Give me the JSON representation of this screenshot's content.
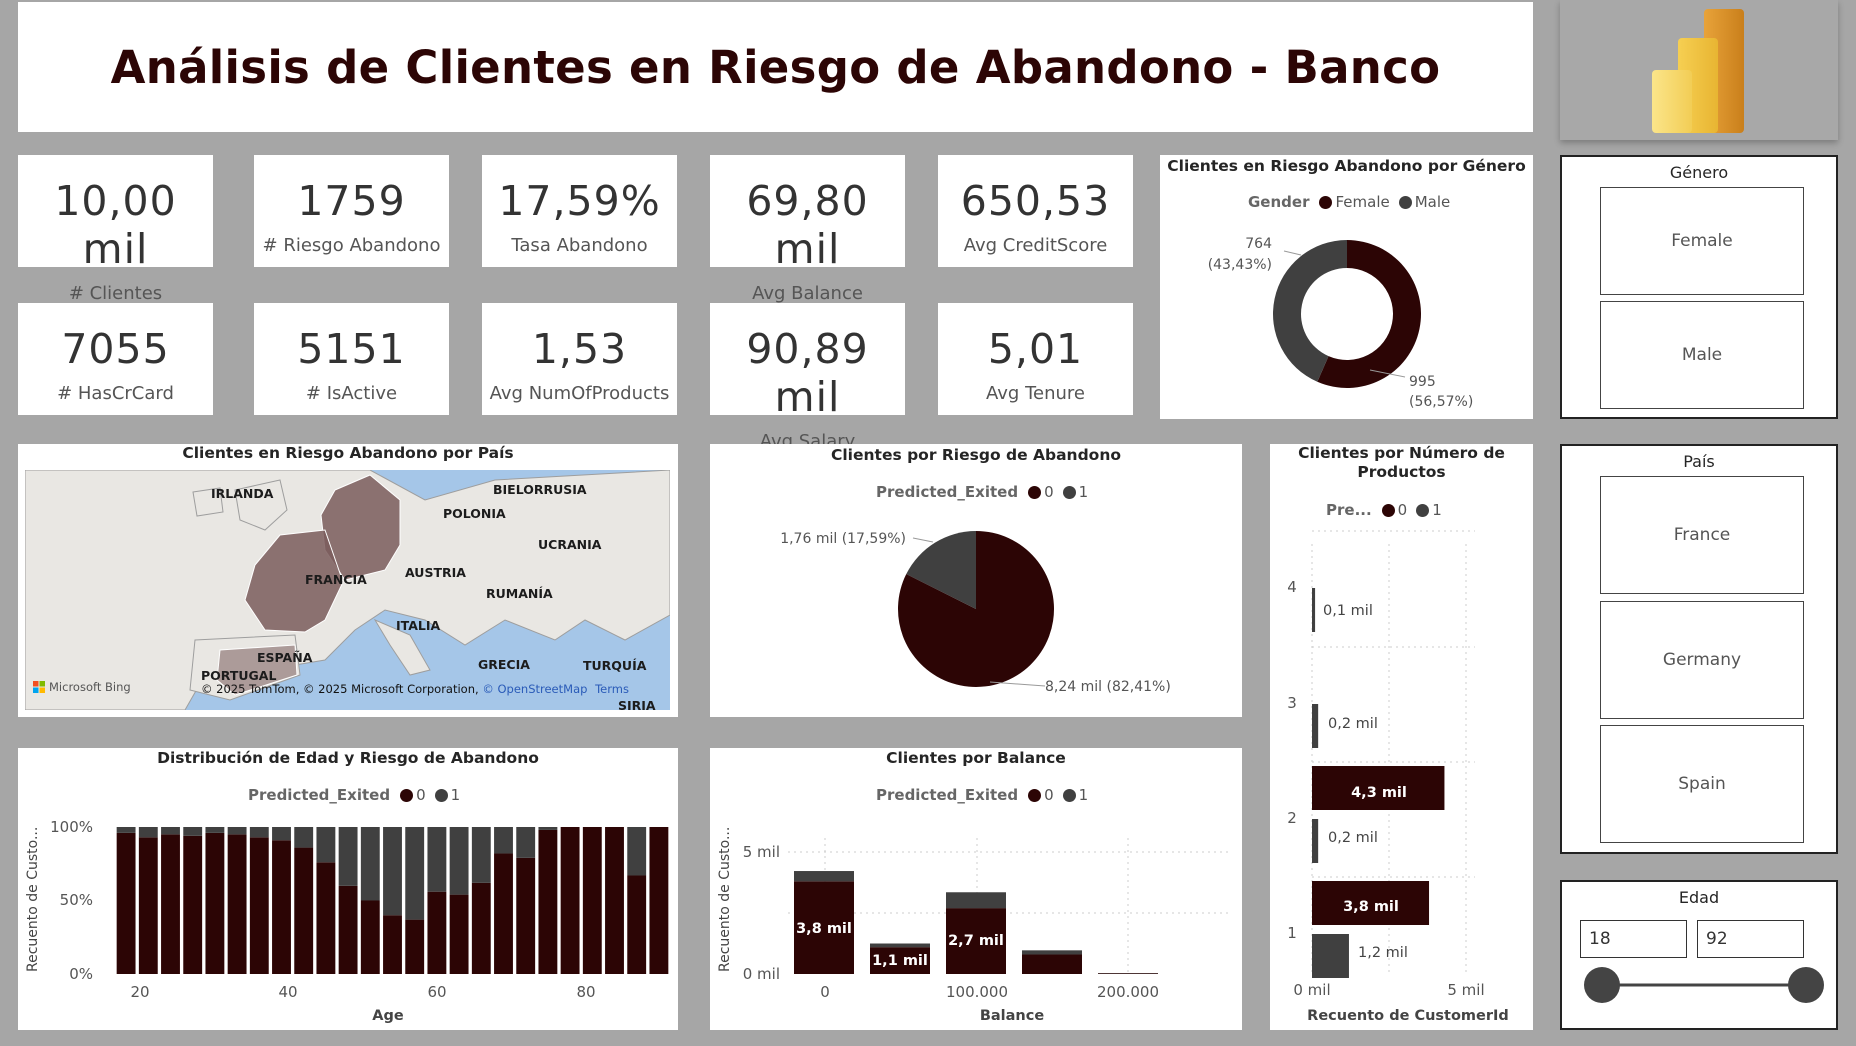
{
  "header": {
    "title": "Análisis de Clientes en Riesgo de Abandono - Banco"
  },
  "colors": {
    "class0": "#2c0505",
    "class1": "#404040",
    "map_highlight": "#7a5c5c"
  },
  "kpis": [
    {
      "value": "10,00 mil",
      "label": "# Clientes"
    },
    {
      "value": "1759",
      "label": "# Riesgo Abandono"
    },
    {
      "value": "17,59%",
      "label": "Tasa Abandono"
    },
    {
      "value": "69,80 mil",
      "label": "Avg Balance"
    },
    {
      "value": "650,53",
      "label": "Avg CreditScore"
    },
    {
      "value": "7055",
      "label": "# HasCrCard"
    },
    {
      "value": "5151",
      "label": "# IsActive"
    },
    {
      "value": "1,53",
      "label": "Avg NumOfProducts"
    },
    {
      "value": "90,89 mil",
      "label": "Avg Salary"
    },
    {
      "value": "5,01",
      "label": "Avg Tenure"
    }
  ],
  "gender_chart": {
    "title": "Clientes en Riesgo Abandono por Género",
    "legend_title": "Gender",
    "legend": [
      "Female",
      "Male"
    ],
    "label_male": "764",
    "label_male_pct": "(43,43%)",
    "label_female": "995",
    "label_female_pct": "(56,57%)"
  },
  "map": {
    "title": "Clientes en Riesgo Abandono por País",
    "labels": [
      "IRLANDA",
      "BIELORRUSIA",
      "POLONIA",
      "UCRANIA",
      "FRANCIA",
      "AUSTRIA",
      "RUMANÍA",
      "ITALIA",
      "ESPAÑA",
      "PORTUGAL",
      "GRECIA",
      "TURQUÍA",
      "SIRIA"
    ],
    "brand": "Microsoft Bing",
    "copyright": "© 2025 TomTom, © 2025 Microsoft Corporation,",
    "osm": "© OpenStreetMap",
    "terms": "Terms"
  },
  "risk_pie": {
    "title": "Clientes por Riesgo de Abandono",
    "legend_title": "Predicted_Exited",
    "legend": [
      "0",
      "1"
    ],
    "label_1": "1,76 mil (17,59%)",
    "label_0": "8,24 mil (82,41%)"
  },
  "products": {
    "title_line1": "Clientes por Número de",
    "title_line2": "Productos",
    "legend_title": "Pre...",
    "legend": [
      "0",
      "1"
    ],
    "xlabel": "Recuento de CustomerId",
    "x_ticks": [
      "0 mil",
      "5 mil"
    ],
    "y_ticks": [
      "4",
      "3",
      "2",
      "1"
    ],
    "bar_labels": [
      "0,1 mil",
      "0,2 mil",
      "4,3 mil",
      "0,2 mil",
      "3,8 mil",
      "1,2 mil"
    ]
  },
  "age_chart": {
    "title": "Distribución de Edad y Riesgo de Abandono",
    "legend_title": "Predicted_Exited",
    "legend": [
      "0",
      "1"
    ],
    "ylabel": "Recuento de Custo...",
    "xlabel": "Age",
    "y_ticks": [
      "100%",
      "50%",
      "0%"
    ],
    "x_ticks": [
      "20",
      "40",
      "60",
      "80"
    ]
  },
  "balance_chart": {
    "title": "Clientes por Balance",
    "legend_title": "Predicted_Exited",
    "legend": [
      "0",
      "1"
    ],
    "ylabel": "Recuento de Custo...",
    "xlabel": "Balance",
    "y_ticks": [
      "5 mil",
      "0 mil"
    ],
    "x_ticks": [
      "0",
      "100.000",
      "200.000"
    ],
    "bar_labels": [
      "3,8 mil",
      "1,1 mil",
      "2,7 mil"
    ]
  },
  "slicers": {
    "gender": {
      "title": "Género",
      "options": [
        "Female",
        "Male"
      ]
    },
    "country": {
      "title": "País",
      "options": [
        "France",
        "Germany",
        "Spain"
      ]
    },
    "age": {
      "title": "Edad",
      "min": "18",
      "max": "92",
      "range_fraction": [
        0,
        1
      ]
    }
  },
  "chart_data": [
    {
      "type": "pie",
      "title": "Clientes en Riesgo Abandono por Género",
      "categories": [
        "Female",
        "Male"
      ],
      "values": [
        995,
        764
      ],
      "percent": [
        56.57,
        43.43
      ]
    },
    {
      "type": "pie",
      "title": "Clientes por Riesgo de Abandono",
      "categories": [
        "0",
        "1"
      ],
      "values": [
        8240,
        1760
      ],
      "percent": [
        82.41,
        17.59
      ]
    },
    {
      "type": "bar",
      "title": "Clientes por Número de Productos",
      "xlabel": "Recuento de CustomerId",
      "categories": [
        "4",
        "3",
        "2",
        "1"
      ],
      "series": [
        {
          "name": "0",
          "values": [
            0,
            0,
            4300,
            3800
          ]
        },
        {
          "name": "1",
          "values": [
            100,
            200,
            200,
            1200
          ]
        }
      ],
      "xlim": [
        0,
        5000
      ]
    },
    {
      "type": "bar",
      "title": "Distribución de Edad y Riesgo de Abandono",
      "xlabel": "Age",
      "ylabel": "Recuento de Custo...",
      "x": [
        18,
        21,
        24,
        27,
        30,
        33,
        36,
        39,
        42,
        45,
        48,
        51,
        54,
        57,
        60,
        63,
        66,
        69,
        72,
        75,
        78,
        81,
        84,
        87,
        90
      ],
      "series": [
        {
          "name": "0",
          "values": [
            96,
            93,
            95,
            94,
            96,
            95,
            93,
            91,
            86,
            76,
            60,
            50,
            40,
            37,
            56,
            54,
            62,
            82,
            79,
            98,
            100,
            100,
            100,
            67,
            100
          ]
        },
        {
          "name": "1",
          "values": [
            4,
            7,
            5,
            6,
            4,
            5,
            7,
            9,
            14,
            24,
            40,
            50,
            60,
            63,
            44,
            46,
            38,
            18,
            21,
            2,
            0,
            0,
            0,
            33,
            0
          ]
        }
      ],
      "ylim": [
        0,
        100
      ]
    },
    {
      "type": "bar",
      "title": "Clientes por Balance",
      "xlabel": "Balance",
      "ylabel": "Recuento de Custo...",
      "categories": [
        "0",
        "50.000",
        "100.000",
        "150.000",
        "200.000"
      ],
      "series": [
        {
          "name": "0",
          "values": [
            3800,
            1100,
            2700,
            800,
            30
          ]
        },
        {
          "name": "1",
          "values": [
            420,
            150,
            650,
            170,
            10
          ]
        }
      ],
      "ylim": [
        0,
        5000
      ]
    }
  ]
}
